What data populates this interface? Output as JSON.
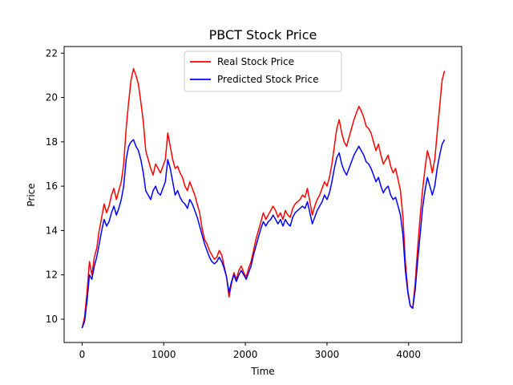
{
  "chart_data": {
    "type": "line",
    "title": "PBCT Stock Price",
    "xlabel": "Time",
    "ylabel": "Price",
    "xlim": [
      -220,
      4650
    ],
    "ylim": [
      8.95,
      22.3
    ],
    "xticks": [
      0,
      1000,
      2000,
      3000,
      4000
    ],
    "yticks": [
      10,
      12,
      14,
      16,
      18,
      20,
      22
    ],
    "legend_position": "upper center",
    "grid": false,
    "series": [
      {
        "name": "Real Stock Price",
        "color": "#ff0000",
        "x": [
          0,
          30,
          60,
          90,
          120,
          150,
          180,
          210,
          240,
          270,
          300,
          330,
          360,
          390,
          420,
          450,
          480,
          510,
          540,
          570,
          600,
          630,
          660,
          690,
          720,
          750,
          780,
          810,
          840,
          870,
          900,
          930,
          960,
          990,
          1020,
          1050,
          1080,
          1110,
          1140,
          1170,
          1200,
          1230,
          1260,
          1290,
          1320,
          1350,
          1380,
          1410,
          1440,
          1470,
          1500,
          1530,
          1560,
          1590,
          1620,
          1650,
          1680,
          1710,
          1740,
          1770,
          1800,
          1830,
          1860,
          1890,
          1920,
          1950,
          1980,
          2010,
          2040,
          2070,
          2100,
          2130,
          2160,
          2190,
          2220,
          2250,
          2280,
          2310,
          2340,
          2370,
          2400,
          2430,
          2460,
          2490,
          2520,
          2550,
          2580,
          2610,
          2640,
          2670,
          2700,
          2730,
          2760,
          2790,
          2820,
          2850,
          2880,
          2910,
          2940,
          2970,
          3000,
          3030,
          3060,
          3090,
          3120,
          3150,
          3180,
          3210,
          3240,
          3270,
          3300,
          3330,
          3360,
          3390,
          3420,
          3450,
          3480,
          3510,
          3540,
          3570,
          3600,
          3630,
          3660,
          3690,
          3720,
          3750,
          3780,
          3810,
          3840,
          3870,
          3900,
          3930,
          3960,
          3990,
          4020,
          4050,
          4080,
          4110,
          4140,
          4170,
          4200,
          4230,
          4260,
          4290,
          4320,
          4350,
          4380,
          4410,
          4440
        ],
        "values": [
          9.6,
          10.1,
          11.2,
          12.6,
          12.0,
          12.8,
          13.2,
          14.0,
          14.6,
          15.2,
          14.8,
          15.1,
          15.6,
          15.9,
          15.4,
          15.8,
          16.2,
          17.0,
          18.6,
          19.8,
          20.8,
          21.3,
          21.0,
          20.6,
          19.8,
          18.9,
          17.6,
          17.2,
          16.8,
          16.5,
          17.0,
          16.8,
          16.6,
          16.9,
          17.2,
          18.4,
          17.8,
          17.2,
          16.8,
          16.9,
          16.6,
          16.4,
          16.0,
          15.8,
          16.2,
          15.9,
          15.6,
          15.2,
          14.8,
          14.1,
          13.6,
          13.4,
          13.1,
          12.9,
          12.7,
          12.8,
          13.1,
          12.9,
          12.4,
          11.9,
          11.0,
          11.6,
          12.1,
          11.8,
          12.2,
          12.4,
          12.1,
          11.9,
          12.3,
          12.6,
          13.1,
          13.6,
          14.0,
          14.4,
          14.8,
          14.5,
          14.7,
          14.9,
          15.1,
          14.9,
          14.6,
          14.8,
          14.5,
          14.9,
          14.7,
          14.6,
          15.0,
          15.2,
          15.3,
          15.4,
          15.6,
          15.5,
          15.9,
          15.3,
          14.7,
          15.1,
          15.4,
          15.6,
          15.9,
          16.2,
          16.0,
          16.4,
          17.0,
          17.8,
          18.6,
          19.0,
          18.4,
          18.0,
          17.8,
          18.2,
          18.6,
          19.0,
          19.3,
          19.6,
          19.4,
          19.1,
          18.7,
          18.6,
          18.4,
          18.0,
          17.6,
          17.9,
          17.4,
          17.0,
          17.2,
          17.4,
          16.9,
          16.6,
          16.8,
          16.3,
          15.8,
          14.6,
          12.6,
          11.3,
          10.6,
          10.5,
          11.6,
          13.2,
          14.6,
          15.8,
          16.8,
          17.6,
          17.2,
          16.6,
          17.2,
          18.4,
          19.6,
          20.8,
          21.2
        ]
      },
      {
        "name": "Predicted Stock Price",
        "color": "#0000ff",
        "x": [
          0,
          30,
          60,
          90,
          120,
          150,
          180,
          210,
          240,
          270,
          300,
          330,
          360,
          390,
          420,
          450,
          480,
          510,
          540,
          570,
          600,
          630,
          660,
          690,
          720,
          750,
          780,
          810,
          840,
          870,
          900,
          930,
          960,
          990,
          1020,
          1050,
          1080,
          1110,
          1140,
          1170,
          1200,
          1230,
          1260,
          1290,
          1320,
          1350,
          1380,
          1410,
          1440,
          1470,
          1500,
          1530,
          1560,
          1590,
          1620,
          1650,
          1680,
          1710,
          1740,
          1770,
          1800,
          1830,
          1860,
          1890,
          1920,
          1950,
          1980,
          2010,
          2040,
          2070,
          2100,
          2130,
          2160,
          2190,
          2220,
          2250,
          2280,
          2310,
          2340,
          2370,
          2400,
          2430,
          2460,
          2490,
          2520,
          2550,
          2580,
          2610,
          2640,
          2670,
          2700,
          2730,
          2760,
          2790,
          2820,
          2850,
          2880,
          2910,
          2940,
          2970,
          3000,
          3030,
          3060,
          3090,
          3120,
          3150,
          3180,
          3210,
          3240,
          3270,
          3300,
          3330,
          3360,
          3390,
          3420,
          3450,
          3480,
          3510,
          3540,
          3570,
          3600,
          3630,
          3660,
          3690,
          3720,
          3750,
          3780,
          3810,
          3840,
          3870,
          3900,
          3930,
          3960,
          3990,
          4020,
          4050,
          4080,
          4110,
          4140,
          4170,
          4200,
          4230,
          4260,
          4290,
          4320,
          4350,
          4380,
          4410,
          4440
        ],
        "values": [
          9.6,
          9.9,
          10.8,
          12.0,
          11.8,
          12.4,
          12.8,
          13.4,
          14.0,
          14.5,
          14.2,
          14.4,
          14.8,
          15.1,
          14.7,
          15.0,
          15.4,
          16.0,
          17.2,
          17.8,
          18.0,
          18.1,
          17.8,
          17.6,
          17.2,
          16.6,
          15.8,
          15.6,
          15.4,
          15.8,
          16.0,
          15.7,
          15.6,
          15.9,
          16.2,
          17.2,
          16.8,
          16.2,
          15.6,
          15.8,
          15.5,
          15.3,
          15.2,
          15.0,
          15.4,
          15.2,
          14.9,
          14.6,
          14.2,
          13.8,
          13.4,
          13.1,
          12.8,
          12.6,
          12.5,
          12.6,
          12.8,
          12.6,
          12.3,
          11.9,
          11.2,
          11.7,
          12.0,
          11.7,
          12.0,
          12.2,
          12.0,
          11.8,
          12.1,
          12.4,
          12.9,
          13.3,
          13.7,
          14.1,
          14.4,
          14.2,
          14.4,
          14.5,
          14.7,
          14.5,
          14.3,
          14.5,
          14.2,
          14.5,
          14.3,
          14.2,
          14.6,
          14.8,
          14.9,
          15.0,
          15.1,
          15.0,
          15.3,
          14.8,
          14.3,
          14.6,
          14.9,
          15.1,
          15.3,
          15.6,
          15.4,
          15.7,
          16.2,
          16.8,
          17.3,
          17.5,
          17.0,
          16.7,
          16.5,
          16.8,
          17.1,
          17.4,
          17.6,
          17.8,
          17.6,
          17.4,
          17.1,
          17.0,
          16.8,
          16.5,
          16.2,
          16.4,
          16.0,
          15.7,
          15.9,
          16.0,
          15.6,
          15.4,
          15.5,
          15.1,
          14.7,
          13.8,
          12.2,
          11.2,
          10.6,
          10.5,
          11.3,
          12.6,
          13.8,
          15.0,
          15.8,
          16.4,
          16.0,
          15.6,
          16.0,
          16.8,
          17.4,
          17.9,
          18.1
        ]
      }
    ]
  }
}
